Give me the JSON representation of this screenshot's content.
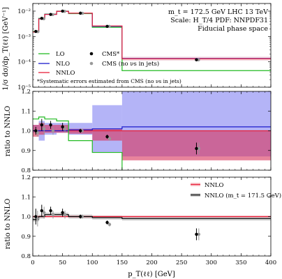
{
  "chart_data": {
    "type": "line",
    "x_label": "p_T(ℓℓ) [GeV]",
    "x_ticks": [
      0,
      50,
      100,
      150,
      200,
      250,
      300,
      350,
      400
    ],
    "xlim": [
      0,
      400
    ],
    "bin_edges": [
      0,
      10,
      20,
      40,
      60,
      100,
      150,
      400
    ],
    "top": {
      "ylabel": "1/σ dσ/dp_T(ℓℓ) [GeV⁻¹]",
      "yscale": "log",
      "ylim": [
        1e-05,
        0.02
      ],
      "y_ticks": [
        {
          "value": 1e-05,
          "label": "10⁻⁵"
        },
        {
          "value": 0.0001,
          "label": "10⁻⁴"
        },
        {
          "value": 0.001,
          "label": "10⁻³"
        },
        {
          "value": 0.01,
          "label": "10⁻²"
        }
      ],
      "info_lines": [
        "m_t = 172.5 GeV LHC 13 TeV",
        "Scale: H_T/4 PDF: NNPDF31",
        "Fiducial phase space"
      ],
      "footnote": "*Systematic errors estimated from CMS (no νs in jets)",
      "legend": [
        {
          "label": "LO",
          "kind": "line",
          "color": "#22bb22"
        },
        {
          "label": "NLO",
          "kind": "line",
          "color": "#1a1acc"
        },
        {
          "label": "NNLO",
          "kind": "line",
          "color": "#e8203a"
        },
        {
          "label": "CMS*",
          "kind": "marker",
          "color": "#000000"
        },
        {
          "label": "CMS (no νs in jets)",
          "kind": "marker",
          "color": "#999999"
        }
      ],
      "series": [
        {
          "name": "LO",
          "color": "#22bb22",
          "values": [
            0.00158,
            0.0052,
            0.0076,
            0.01,
            0.008,
            0.0023,
            4.5e-05
          ]
        },
        {
          "name": "NLO",
          "color": "#1a1acc",
          "values": [
            0.0015,
            0.005,
            0.0075,
            0.0098,
            0.0082,
            0.0025,
            0.000135
          ]
        },
        {
          "name": "NNLO",
          "color": "#e8203a",
          "values": [
            0.0015,
            0.0049,
            0.0074,
            0.0098,
            0.0083,
            0.0026,
            0.000132
          ]
        }
      ],
      "cms": {
        "x": [
          5,
          15,
          30,
          50,
          80,
          125,
          275
        ],
        "y": [
          0.00158,
          0.0052,
          0.0074,
          0.01,
          0.0083,
          0.0025,
          0.000121
        ]
      },
      "cms_nonu": {
        "x": [
          5,
          15,
          30,
          50,
          80,
          125,
          275
        ],
        "y": [
          0.00155,
          0.005,
          0.0073,
          0.0098,
          0.0082,
          0.0025,
          0.00012
        ]
      }
    },
    "mid": {
      "ylabel": "ratio to NNLO",
      "ylim": [
        0.8,
        1.2
      ],
      "y_ticks": [
        0.8,
        0.9,
        1.0,
        1.1,
        1.2
      ],
      "lo": [
        1.06,
        1.07,
        1.06,
        1.05,
        0.95,
        0.89,
        0.76
      ],
      "nlo": [
        1.0,
        1.0,
        1.0,
        1.0,
        1.005,
        1.01,
        1.02
      ],
      "nlo_band": [
        [
          0.99,
          1.03
        ],
        [
          0.95,
          1.05
        ],
        [
          0.98,
          1.04
        ],
        [
          0.99,
          1.04
        ],
        [
          0.98,
          1.04
        ],
        [
          0.89,
          1.13
        ],
        [
          0.87,
          1.22
        ]
      ],
      "nnlo_band": [
        [
          0.97,
          1.03
        ],
        [
          0.98,
          1.04
        ],
        [
          0.99,
          1.03
        ],
        [
          0.99,
          1.03
        ],
        [
          0.985,
          1.01
        ],
        [
          0.95,
          1.01
        ],
        [
          0.85,
          1.0
        ]
      ],
      "cms": {
        "x": [
          5,
          15,
          30,
          50,
          80,
          125,
          275
        ],
        "y": [
          1.0,
          1.03,
          1.03,
          1.02,
          1.0,
          0.97,
          0.91
        ],
        "err": [
          0.02,
          0.03,
          0.02,
          0.02,
          0.01,
          0.01,
          0.03
        ]
      },
      "cms_nonu": {
        "x": [
          8,
          19,
          34,
          54,
          83,
          129,
          279
        ],
        "y": [
          0.99,
          1.01,
          1.0,
          1.01,
          1.0,
          0.96,
          0.91
        ],
        "err": [
          0.02,
          0.03,
          0.02,
          0.02,
          0.01,
          0.01,
          0.03
        ]
      }
    },
    "bot": {
      "ylabel": "ratio to NNLO",
      "ylim": [
        0.8,
        1.2
      ],
      "y_ticks": [
        0.8,
        0.9,
        1.0,
        1.1,
        1.2
      ],
      "legend": [
        {
          "label": "NNLO",
          "color": "#e8203a"
        },
        {
          "label": "NNLO (m_t = 171.5 GeV)",
          "color": "#000000"
        }
      ],
      "nnlo_alt": [
        0.985,
        1.0,
        1.01,
        1.01,
        1.0,
        0.995,
        0.99
      ],
      "nnlo_alt_band": [
        [
          0.975,
          0.995
        ],
        [
          0.99,
          1.01
        ],
        [
          1.0,
          1.02
        ],
        [
          1.0,
          1.02
        ],
        [
          0.99,
          1.01
        ],
        [
          0.985,
          1.005
        ],
        [
          0.98,
          1.0
        ]
      ],
      "nnlo_band": [
        [
          0.995,
          1.005
        ],
        [
          0.995,
          1.005
        ],
        [
          0.995,
          1.005
        ],
        [
          0.995,
          1.005
        ],
        [
          0.995,
          1.005
        ],
        [
          0.995,
          1.005
        ],
        [
          0.995,
          1.005
        ]
      ],
      "cms": {
        "x": [
          5,
          15,
          30,
          50,
          80,
          125,
          275
        ],
        "y": [
          1.0,
          1.03,
          1.03,
          1.02,
          1.0,
          0.97,
          0.91
        ],
        "err": [
          0.04,
          0.03,
          0.02,
          0.02,
          0.01,
          0.01,
          0.03
        ]
      },
      "cms_nonu": {
        "x": [
          8,
          19,
          34,
          54,
          83,
          129,
          279
        ],
        "y": [
          0.99,
          1.02,
          1.01,
          1.01,
          1.0,
          0.96,
          0.91
        ],
        "err": [
          0.04,
          0.03,
          0.02,
          0.02,
          0.01,
          0.01,
          0.03
        ]
      }
    }
  }
}
